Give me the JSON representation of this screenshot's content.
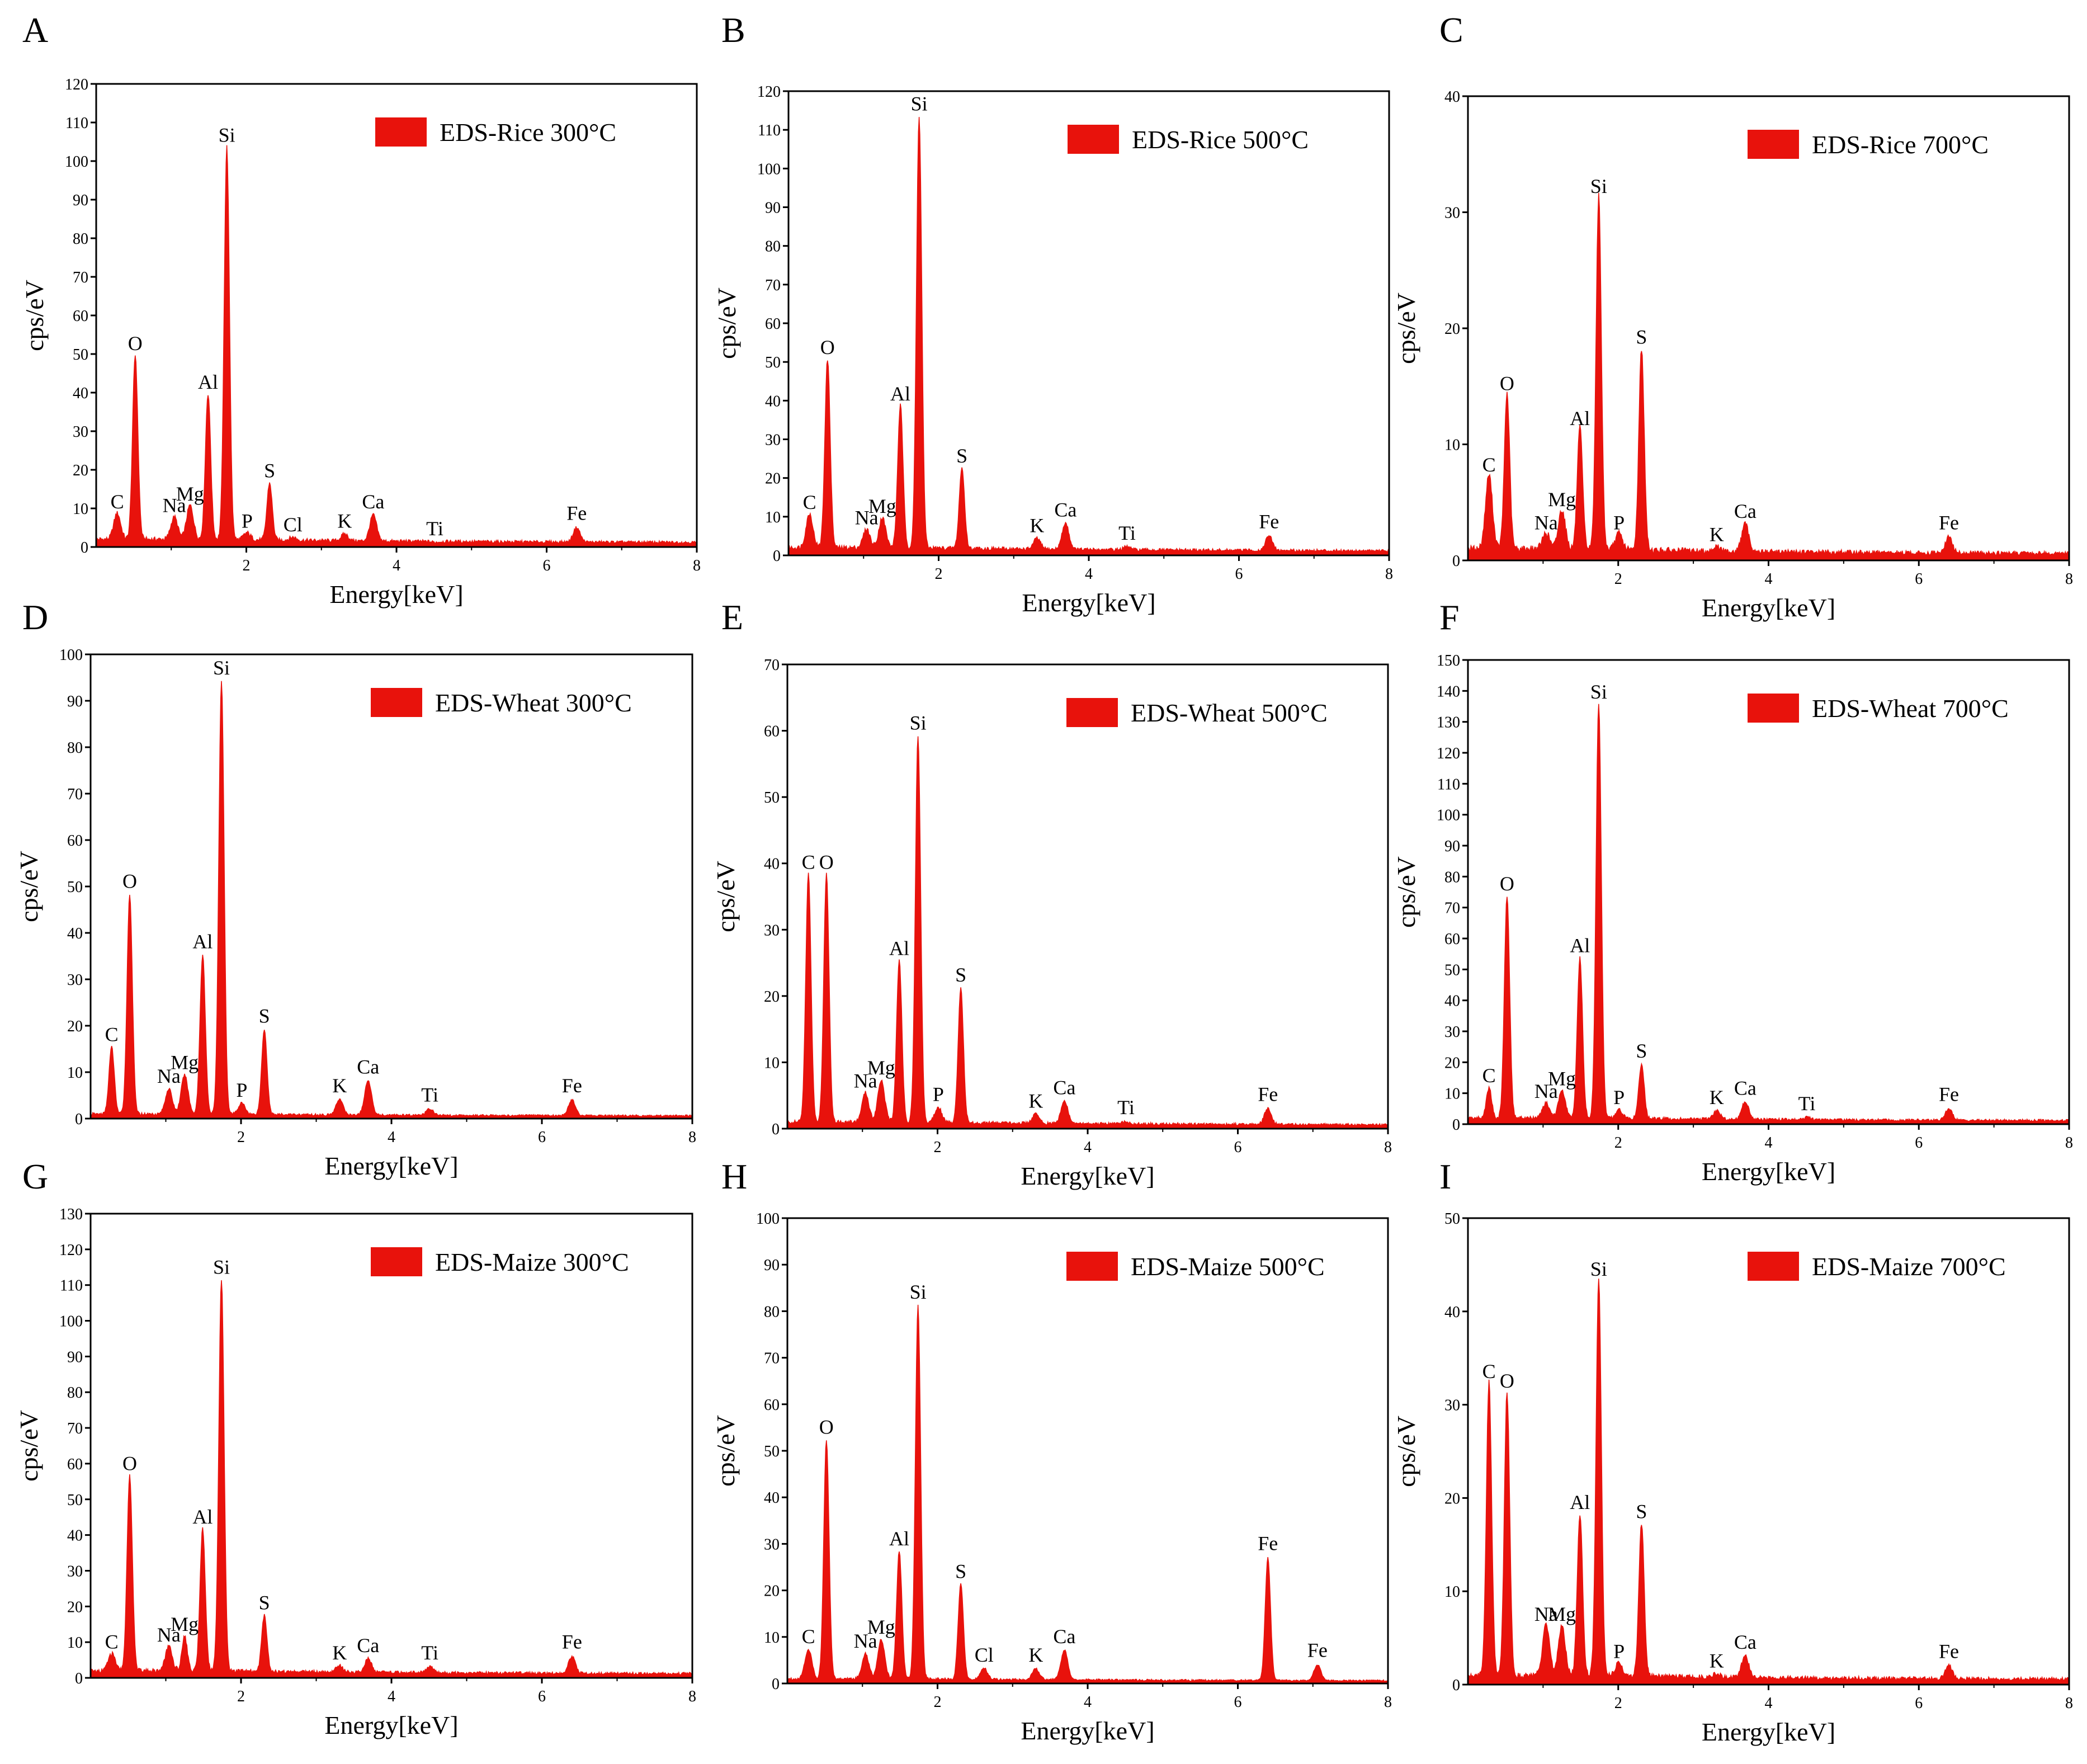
{
  "figure": {
    "accent_color": "#e8120c",
    "axis_color": "#000000"
  },
  "chart_data": [
    {
      "type": "area",
      "panel": "A",
      "title": "EDS-Rice 300°C",
      "legend_placement": "top-right",
      "xlabel": "Energy[keV]",
      "ylabel": "cps/eV",
      "xlim": [
        0,
        8
      ],
      "ylim": [
        0,
        120
      ],
      "x_ticks": [
        "2",
        "4",
        "6",
        "8"
      ],
      "y_ticks": [
        "0",
        "10",
        "20",
        "30",
        "40",
        "50",
        "60",
        "70",
        "80",
        "90",
        "100",
        "110",
        "120"
      ],
      "baseline": 2,
      "peaks": [
        {
          "label": "C",
          "energy": 0.28,
          "value": 8
        },
        {
          "label": "O",
          "energy": 0.52,
          "value": 49
        },
        {
          "label": "Na",
          "energy": 1.04,
          "value": 7
        },
        {
          "label": "Mg",
          "energy": 1.25,
          "value": 10
        },
        {
          "label": "Al",
          "energy": 1.49,
          "value": 39
        },
        {
          "label": "Si",
          "energy": 1.74,
          "value": 103
        },
        {
          "label": "P",
          "energy": 2.01,
          "value": 3
        },
        {
          "label": "S",
          "energy": 2.31,
          "value": 16
        },
        {
          "label": "Cl",
          "energy": 2.62,
          "value": 2
        },
        {
          "label": "K",
          "energy": 3.31,
          "value": 3
        },
        {
          "label": "Ca",
          "energy": 3.69,
          "value": 8
        },
        {
          "label": "Ti",
          "energy": 4.51,
          "value": 1
        },
        {
          "label": "Fe",
          "energy": 6.4,
          "value": 5
        }
      ]
    },
    {
      "type": "area",
      "panel": "B",
      "title": "EDS-Rice 500°C",
      "legend_placement": "top-right",
      "xlabel": "Energy[keV]",
      "ylabel": "cps/eV",
      "xlim": [
        0,
        8
      ],
      "ylim": [
        0,
        120
      ],
      "x_ticks": [
        "2",
        "4",
        "6",
        "8"
      ],
      "y_ticks": [
        "0",
        "10",
        "20",
        "30",
        "40",
        "50",
        "60",
        "70",
        "80",
        "90",
        "100",
        "110",
        "120"
      ],
      "baseline": 2,
      "peaks": [
        {
          "label": "C",
          "energy": 0.28,
          "value": 10
        },
        {
          "label": "O",
          "energy": 0.52,
          "value": 50
        },
        {
          "label": "Na",
          "energy": 1.04,
          "value": 6
        },
        {
          "label": "Mg",
          "energy": 1.25,
          "value": 9
        },
        {
          "label": "Al",
          "energy": 1.49,
          "value": 38
        },
        {
          "label": "Si",
          "energy": 1.74,
          "value": 113
        },
        {
          "label": "S",
          "energy": 2.31,
          "value": 22
        },
        {
          "label": "K",
          "energy": 3.31,
          "value": 4
        },
        {
          "label": "Ca",
          "energy": 3.69,
          "value": 8
        },
        {
          "label": "Ti",
          "energy": 4.51,
          "value": 2
        },
        {
          "label": "Fe",
          "energy": 6.4,
          "value": 5
        }
      ]
    },
    {
      "type": "area",
      "panel": "C",
      "title": "EDS-Rice 700°C",
      "legend_placement": "top-right",
      "xlabel": "Energy[keV]",
      "ylabel": "cps/eV",
      "xlim": [
        0,
        8
      ],
      "ylim": [
        0,
        40
      ],
      "x_ticks": [
        "2",
        "4",
        "6",
        "8"
      ],
      "y_ticks": [
        "0",
        "10",
        "20",
        "30",
        "40"
      ],
      "baseline": 1,
      "peaks": [
        {
          "label": "C",
          "energy": 0.28,
          "value": 7
        },
        {
          "label": "O",
          "energy": 0.52,
          "value": 14
        },
        {
          "label": "Na",
          "energy": 1.04,
          "value": 2
        },
        {
          "label": "Mg",
          "energy": 1.25,
          "value": 4
        },
        {
          "label": "Al",
          "energy": 1.49,
          "value": 11
        },
        {
          "label": "Si",
          "energy": 1.74,
          "value": 31
        },
        {
          "label": "P",
          "energy": 2.01,
          "value": 2
        },
        {
          "label": "S",
          "energy": 2.31,
          "value": 18
        },
        {
          "label": "K",
          "energy": 3.31,
          "value": 1
        },
        {
          "label": "Ca",
          "energy": 3.69,
          "value": 3
        },
        {
          "label": "Fe",
          "energy": 6.4,
          "value": 2
        }
      ]
    },
    {
      "type": "area",
      "panel": "D",
      "title": "EDS-Wheat 300°C",
      "legend_placement": "top-right",
      "xlabel": "Energy[keV]",
      "ylabel": "cps/eV",
      "xlim": [
        0,
        8
      ],
      "ylim": [
        0,
        100
      ],
      "x_ticks": [
        "2",
        "4",
        "6",
        "8"
      ],
      "y_ticks": [
        "0",
        "10",
        "20",
        "30",
        "40",
        "50",
        "60",
        "70",
        "80",
        "90",
        "100"
      ],
      "baseline": 1,
      "peaks": [
        {
          "label": "C",
          "energy": 0.28,
          "value": 15
        },
        {
          "label": "O",
          "energy": 0.52,
          "value": 48
        },
        {
          "label": "Na",
          "energy": 1.04,
          "value": 6
        },
        {
          "label": "Mg",
          "energy": 1.25,
          "value": 9
        },
        {
          "label": "Al",
          "energy": 1.49,
          "value": 35
        },
        {
          "label": "Si",
          "energy": 1.74,
          "value": 94
        },
        {
          "label": "P",
          "energy": 2.01,
          "value": 3
        },
        {
          "label": "S",
          "energy": 2.31,
          "value": 19
        },
        {
          "label": "K",
          "energy": 3.31,
          "value": 4
        },
        {
          "label": "Ca",
          "energy": 3.69,
          "value": 8
        },
        {
          "label": "Ti",
          "energy": 4.51,
          "value": 2
        },
        {
          "label": "Fe",
          "energy": 6.4,
          "value": 4
        }
      ]
    },
    {
      "type": "area",
      "panel": "E",
      "title": "EDS-Wheat 500°C",
      "legend_placement": "top-right",
      "xlabel": "Energy[keV]",
      "ylabel": "cps/eV",
      "xlim": [
        0,
        8
      ],
      "ylim": [
        0,
        70
      ],
      "x_ticks": [
        "2",
        "4",
        "6",
        "8"
      ],
      "y_ticks": [
        "0",
        "10",
        "20",
        "30",
        "40",
        "50",
        "60",
        "70"
      ],
      "baseline": 1,
      "peaks": [
        {
          "label": "C",
          "energy": 0.28,
          "value": 38
        },
        {
          "label": "O",
          "energy": 0.52,
          "value": 38
        },
        {
          "label": "Na",
          "energy": 1.04,
          "value": 5
        },
        {
          "label": "Mg",
          "energy": 1.25,
          "value": 7
        },
        {
          "label": "Al",
          "energy": 1.49,
          "value": 25
        },
        {
          "label": "Si",
          "energy": 1.74,
          "value": 59
        },
        {
          "label": "P",
          "energy": 2.01,
          "value": 3
        },
        {
          "label": "S",
          "energy": 2.31,
          "value": 21
        },
        {
          "label": "K",
          "energy": 3.31,
          "value": 2
        },
        {
          "label": "Ca",
          "energy": 3.69,
          "value": 4
        },
        {
          "label": "Ti",
          "energy": 4.51,
          "value": 1
        },
        {
          "label": "Fe",
          "energy": 6.4,
          "value": 3
        }
      ]
    },
    {
      "type": "area",
      "panel": "F",
      "title": "EDS-Wheat 700°C",
      "legend_placement": "top-right",
      "xlabel": "Energy[keV]",
      "ylabel": "cps/eV",
      "xlim": [
        0,
        8
      ],
      "ylim": [
        0,
        150
      ],
      "x_ticks": [
        "2",
        "4",
        "6",
        "8"
      ],
      "y_ticks": [
        "0",
        "10",
        "20",
        "30",
        "40",
        "50",
        "60",
        "70",
        "80",
        "90",
        "100",
        "110",
        "120",
        "130",
        "140",
        "150"
      ],
      "baseline": 2,
      "peaks": [
        {
          "label": "C",
          "energy": 0.28,
          "value": 11
        },
        {
          "label": "O",
          "energy": 0.52,
          "value": 73
        },
        {
          "label": "Na",
          "energy": 1.04,
          "value": 6
        },
        {
          "label": "Mg",
          "energy": 1.25,
          "value": 10
        },
        {
          "label": "Al",
          "energy": 1.49,
          "value": 53
        },
        {
          "label": "Si",
          "energy": 1.74,
          "value": 135
        },
        {
          "label": "P",
          "energy": 2.01,
          "value": 4
        },
        {
          "label": "S",
          "energy": 2.31,
          "value": 19
        },
        {
          "label": "K",
          "energy": 3.31,
          "value": 4
        },
        {
          "label": "Ca",
          "energy": 3.69,
          "value": 7
        },
        {
          "label": "Ti",
          "energy": 4.51,
          "value": 2
        },
        {
          "label": "Fe",
          "energy": 6.4,
          "value": 5
        }
      ]
    },
    {
      "type": "area",
      "panel": "G",
      "title": "EDS-Maize 300°C",
      "legend_placement": "top-right",
      "xlabel": "Energy[keV]",
      "ylabel": "cps/eV",
      "xlim": [
        0,
        8
      ],
      "ylim": [
        0,
        130
      ],
      "x_ticks": [
        "2",
        "4",
        "6",
        "8"
      ],
      "y_ticks": [
        "0",
        "10",
        "20",
        "30",
        "40",
        "50",
        "60",
        "70",
        "80",
        "90",
        "100",
        "110",
        "120",
        "130"
      ],
      "baseline": 2,
      "peaks": [
        {
          "label": "C",
          "energy": 0.28,
          "value": 6
        },
        {
          "label": "O",
          "energy": 0.52,
          "value": 56
        },
        {
          "label": "Na",
          "energy": 1.04,
          "value": 8
        },
        {
          "label": "Mg",
          "energy": 1.25,
          "value": 11
        },
        {
          "label": "Al",
          "energy": 1.49,
          "value": 41
        },
        {
          "label": "Si",
          "energy": 1.74,
          "value": 111
        },
        {
          "label": "S",
          "energy": 2.31,
          "value": 17
        },
        {
          "label": "K",
          "energy": 3.31,
          "value": 3
        },
        {
          "label": "Ca",
          "energy": 3.69,
          "value": 5
        },
        {
          "label": "Ti",
          "energy": 4.51,
          "value": 3
        },
        {
          "label": "Fe",
          "energy": 6.4,
          "value": 6
        }
      ]
    },
    {
      "type": "area",
      "panel": "H",
      "title": "EDS-Maize 500°C",
      "legend_placement": "top-right",
      "xlabel": "Energy[keV]",
      "ylabel": "cps/eV",
      "xlim": [
        0,
        8
      ],
      "ylim": [
        0,
        100
      ],
      "x_ticks": [
        "2",
        "4",
        "6",
        "8"
      ],
      "y_ticks": [
        "0",
        "10",
        "20",
        "30",
        "40",
        "50",
        "60",
        "70",
        "80",
        "90",
        "100"
      ],
      "baseline": 1,
      "peaks": [
        {
          "label": "C",
          "energy": 0.28,
          "value": 7
        },
        {
          "label": "O",
          "energy": 0.52,
          "value": 52
        },
        {
          "label": "Na",
          "energy": 1.04,
          "value": 6
        },
        {
          "label": "Mg",
          "energy": 1.25,
          "value": 9
        },
        {
          "label": "Al",
          "energy": 1.49,
          "value": 28
        },
        {
          "label": "Si",
          "energy": 1.74,
          "value": 81
        },
        {
          "label": "S",
          "energy": 2.31,
          "value": 21
        },
        {
          "label": "Cl",
          "energy": 2.62,
          "value": 3
        },
        {
          "label": "K",
          "energy": 3.31,
          "value": 3
        },
        {
          "label": "Ca",
          "energy": 3.69,
          "value": 7
        },
        {
          "label": "Fe",
          "energy": 6.4,
          "value": 27
        },
        {
          "label": "Fe",
          "energy": 7.06,
          "value": 4
        }
      ]
    },
    {
      "type": "area",
      "panel": "I",
      "title": "EDS-Maize 700°C",
      "legend_placement": "top-right",
      "xlabel": "Energy[keV]",
      "ylabel": "cps/eV",
      "xlim": [
        0,
        8
      ],
      "ylim": [
        0,
        50
      ],
      "x_ticks": [
        "2",
        "4",
        "6",
        "8"
      ],
      "y_ticks": [
        "0",
        "10",
        "20",
        "30",
        "40",
        "50"
      ],
      "baseline": 1,
      "peaks": [
        {
          "label": "C",
          "energy": 0.28,
          "value": 32
        },
        {
          "label": "O",
          "energy": 0.52,
          "value": 31
        },
        {
          "label": "Na",
          "energy": 1.04,
          "value": 6
        },
        {
          "label": "Mg",
          "energy": 1.25,
          "value": 6
        },
        {
          "label": "Al",
          "energy": 1.49,
          "value": 18
        },
        {
          "label": "Si",
          "energy": 1.74,
          "value": 43
        },
        {
          "label": "P",
          "energy": 2.01,
          "value": 2
        },
        {
          "label": "S",
          "energy": 2.31,
          "value": 17
        },
        {
          "label": "K",
          "energy": 3.31,
          "value": 1
        },
        {
          "label": "Ca",
          "energy": 3.69,
          "value": 3
        },
        {
          "label": "Fe",
          "energy": 6.4,
          "value": 2
        }
      ]
    }
  ]
}
